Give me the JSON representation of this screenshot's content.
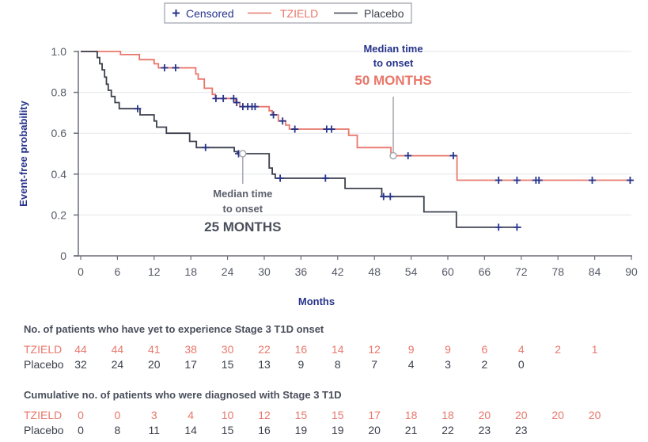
{
  "chart_data": {
    "type": "line",
    "subtype": "kaplan-meier",
    "title": "",
    "xlabel": "Months",
    "ylabel": "Event-free probability",
    "xlim": [
      0,
      90
    ],
    "ylim": [
      0,
      1.0
    ],
    "x_ticks": [
      0,
      6,
      12,
      18,
      24,
      30,
      36,
      42,
      48,
      54,
      60,
      66,
      72,
      78,
      84,
      90
    ],
    "y_ticks": [
      0,
      0.2,
      0.4,
      0.6,
      0.8,
      1.0
    ],
    "y_tick_labels": [
      "0",
      "0.2",
      "0.4",
      "0.6",
      "0.8",
      "1.0"
    ],
    "grid": "horizontal",
    "legend": {
      "position": "top-center",
      "entries": [
        {
          "label": "Censored",
          "symbol": "+",
          "color": "#27348b"
        },
        {
          "label": "TZIELD",
          "symbol": "line",
          "color": "#e8776b"
        },
        {
          "label": "Placebo",
          "symbol": "line",
          "color": "#3d414d"
        }
      ]
    },
    "series": [
      {
        "name": "TZIELD",
        "color": "#e8776b",
        "steps": [
          [
            0,
            1.0
          ],
          [
            6.5,
            0.985
          ],
          [
            9.6,
            0.96
          ],
          [
            12.0,
            0.94
          ],
          [
            12.7,
            0.92
          ],
          [
            18.8,
            0.89
          ],
          [
            19.2,
            0.865
          ],
          [
            20.2,
            0.82
          ],
          [
            21.5,
            0.79
          ],
          [
            22.0,
            0.77
          ],
          [
            25.3,
            0.75
          ],
          [
            26.0,
            0.73
          ],
          [
            30.8,
            0.71
          ],
          [
            31.3,
            0.69
          ],
          [
            32.3,
            0.66
          ],
          [
            33.5,
            0.64
          ],
          [
            34.1,
            0.62
          ],
          [
            43.8,
            0.59
          ],
          [
            45.2,
            0.53
          ],
          [
            50.7,
            0.49
          ],
          [
            61.5,
            0.37
          ],
          [
            90,
            0.37
          ]
        ],
        "censored": [
          [
            13.7,
            0.92
          ],
          [
            15.5,
            0.92
          ],
          [
            22.1,
            0.77
          ],
          [
            23.3,
            0.77
          ],
          [
            25.0,
            0.77
          ],
          [
            25.5,
            0.75
          ],
          [
            26.5,
            0.73
          ],
          [
            27.3,
            0.73
          ],
          [
            28.0,
            0.73
          ],
          [
            28.5,
            0.73
          ],
          [
            31.5,
            0.69
          ],
          [
            33.0,
            0.66
          ],
          [
            35.0,
            0.62
          ],
          [
            40.2,
            0.62
          ],
          [
            41.0,
            0.62
          ],
          [
            53.5,
            0.49
          ],
          [
            60.9,
            0.49
          ],
          [
            68.3,
            0.37
          ],
          [
            71.3,
            0.37
          ],
          [
            74.4,
            0.37
          ],
          [
            74.9,
            0.37
          ],
          [
            83.6,
            0.37
          ],
          [
            89.8,
            0.37
          ]
        ],
        "end": 90
      },
      {
        "name": "Placebo",
        "color": "#3d414d",
        "steps": [
          [
            0,
            1.0
          ],
          [
            2.7,
            0.97
          ],
          [
            3.1,
            0.94
          ],
          [
            3.5,
            0.91
          ],
          [
            3.9,
            0.875
          ],
          [
            4.2,
            0.84
          ],
          [
            4.5,
            0.81
          ],
          [
            5.0,
            0.78
          ],
          [
            5.6,
            0.75
          ],
          [
            6.3,
            0.72
          ],
          [
            9.7,
            0.69
          ],
          [
            12.0,
            0.66
          ],
          [
            12.4,
            0.63
          ],
          [
            14.0,
            0.6
          ],
          [
            17.8,
            0.56
          ],
          [
            18.9,
            0.53
          ],
          [
            25.1,
            0.51
          ],
          [
            25.6,
            0.5
          ],
          [
            30.8,
            0.43
          ],
          [
            31.3,
            0.4
          ],
          [
            31.8,
            0.38
          ],
          [
            43.2,
            0.33
          ],
          [
            49.2,
            0.29
          ],
          [
            56.1,
            0.215
          ],
          [
            61.4,
            0.14
          ]
        ],
        "censored": [
          [
            9.3,
            0.72
          ],
          [
            20.4,
            0.53
          ],
          [
            25.8,
            0.5
          ],
          [
            32.6,
            0.38
          ],
          [
            40.0,
            0.38
          ],
          [
            49.5,
            0.29
          ],
          [
            50.6,
            0.29
          ],
          [
            68.3,
            0.14
          ],
          [
            71.3,
            0.14
          ]
        ],
        "end": 72.0
      }
    ],
    "annotations": [
      {
        "series": "TZIELD",
        "x": 51.6,
        "y": 0.49,
        "line1": "Median time",
        "line2": "to onset",
        "value": "50 MONTHS",
        "label_color": "#27348b",
        "value_color": "#e8776b",
        "placement": "above"
      },
      {
        "series": "Placebo",
        "x": 27.0,
        "y": 0.5,
        "line1": "Median time",
        "line2": "to onset",
        "value": "25 MONTHS",
        "label_color": "#5b5f6b",
        "value_color": "#4a4f5c",
        "placement": "below"
      }
    ]
  },
  "tables": {
    "at_risk": {
      "title": "No. of patients who have yet to experience Stage 3 T1D onset",
      "rows": [
        {
          "label": "TZIELD",
          "values": [
            "44",
            "44",
            "41",
            "38",
            "30",
            "22",
            "16",
            "14",
            "12",
            "9",
            "9",
            "6",
            "4",
            "2",
            "1"
          ]
        },
        {
          "label": "Placebo",
          "values": [
            "32",
            "24",
            "20",
            "17",
            "15",
            "13",
            "9",
            "8",
            "7",
            "4",
            "3",
            "2",
            "0"
          ]
        }
      ]
    },
    "cumulative": {
      "title": "Cumulative no. of patients who were diagnosed with Stage 3 T1D",
      "rows": [
        {
          "label": "TZIELD",
          "values": [
            "0",
            "0",
            "3",
            "4",
            "10",
            "12",
            "15",
            "15",
            "17",
            "18",
            "18",
            "20",
            "20",
            "20",
            "20"
          ]
        },
        {
          "label": "Placebo",
          "values": [
            "0",
            "8",
            "11",
            "14",
            "15",
            "16",
            "19",
            "19",
            "20",
            "21",
            "22",
            "23",
            "23"
          ]
        }
      ]
    }
  }
}
